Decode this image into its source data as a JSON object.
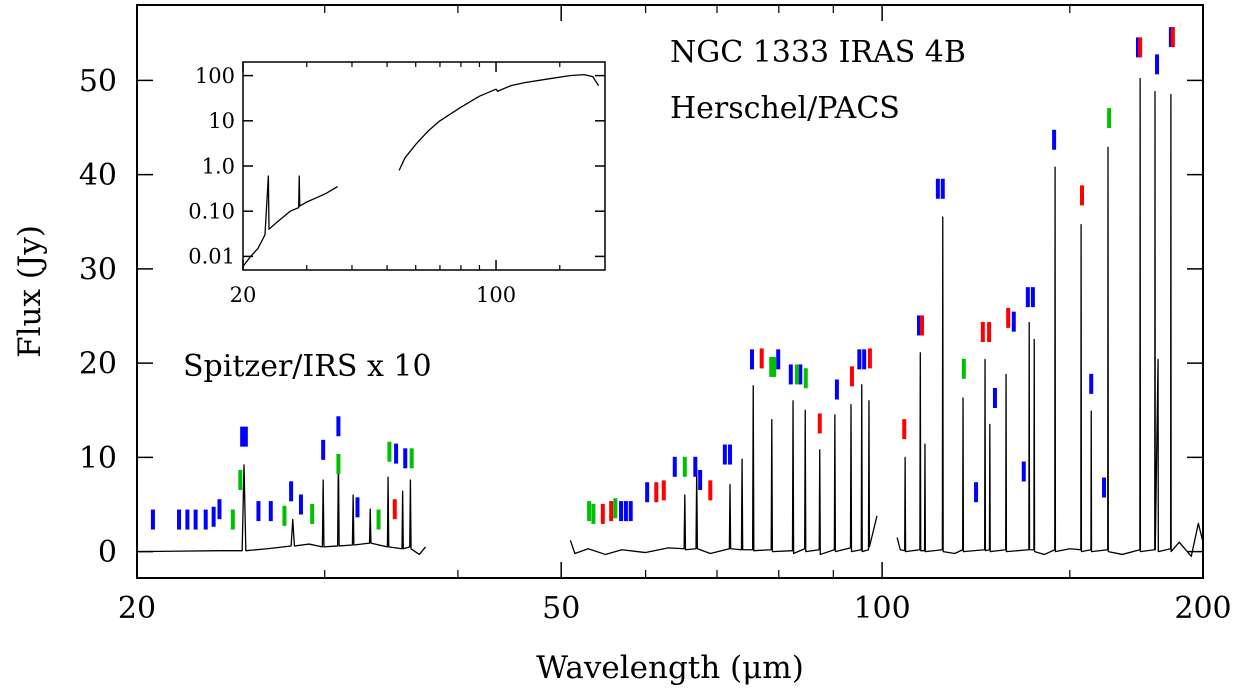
{
  "chart_data": [
    {
      "type": "line",
      "xlabel": "Wavelength (μm)",
      "ylabel": "Flux (Jy)",
      "annotations": [
        "NGC 1333 IRAS 4B",
        "Herschel/PACS",
        "Spitzer/IRS x 10"
      ],
      "xscale": "log",
      "xlim": [
        20,
        200
      ],
      "xticks": [
        20,
        50,
        100,
        200
      ],
      "xminor": [
        30,
        40,
        60,
        70,
        80,
        90,
        150
      ],
      "ylim": [
        -2.8,
        58
      ],
      "yticks": [
        0,
        10,
        20,
        30,
        40,
        50
      ],
      "grid": false,
      "color": "#000000",
      "segments": [
        {
          "x": [
            20,
            22,
            24,
            25.1,
            25.2,
            25.3,
            26.5,
            27.9,
            28.0,
            28.1,
            29,
            29.85,
            29.9,
            29.95,
            30.85,
            30.9,
            30.95,
            31.85,
            31.9,
            31.95,
            33.05,
            33.1,
            33.15,
            34.35,
            34.4,
            34.45,
            35.45,
            35.5,
            35.55,
            36.05,
            36.1,
            36.15,
            36.8,
            37.3
          ],
          "values": [
            0,
            0.05,
            0.1,
            0.1,
            9.2,
            0.1,
            0.3,
            0.6,
            3.4,
            0.6,
            0.8,
            0.5,
            7.6,
            0.5,
            0.6,
            10.3,
            0.6,
            0.7,
            6,
            0.7,
            0.9,
            4.5,
            0.9,
            0.5,
            7.9,
            0.5,
            0.3,
            6.4,
            0.3,
            0.5,
            7.6,
            0.3,
            -0.3,
            0.5
          ]
        },
        {
          "x": [
            51,
            51.5,
            53,
            55,
            57,
            60,
            63,
            65.2,
            65.3,
            65.4,
            66.9,
            67,
            67.1,
            69,
            71.9,
            72,
            72.1,
            73.8,
            73.9,
            74,
            75.6,
            75.7,
            75.8,
            78.7,
            78.8,
            78.9,
            82.4,
            82.5,
            82.6,
            84.6,
            84.7,
            84.8,
            87.3,
            87.4,
            87.5,
            90.2,
            90.3,
            90.4,
            93.4,
            93.5,
            93.6,
            95.6,
            95.7,
            95.8,
            97.1,
            97.2,
            97.3,
            98.9
          ],
          "values": [
            1.2,
            -0.2,
            0.3,
            -0.3,
            0.2,
            -0.1,
            0.4,
            0.3,
            6.0,
            0.2,
            0.3,
            8.7,
            0.3,
            -0.2,
            0.3,
            7.1,
            0.3,
            0.2,
            9.8,
            0.2,
            0.2,
            17.6,
            0.1,
            0.2,
            14,
            0,
            0.1,
            16,
            -0.2,
            0.3,
            15,
            0,
            0.2,
            10.8,
            -0.3,
            0.2,
            14.5,
            0,
            0.4,
            15.6,
            0,
            0.2,
            17.7,
            0,
            0.2,
            16,
            0.5,
            3.8
          ]
        },
        {
          "x": [
            103.3,
            104,
            105,
            105.1,
            105.2,
            108.5,
            108.6,
            108.7,
            109.6,
            109.7,
            109.8,
            113.9,
            114,
            114.1,
            117,
            119,
            119.1,
            119.2,
            124.8,
            124.9,
            125,
            126.1,
            126.2,
            126.3,
            130.6,
            130.7,
            130.8,
            137.3,
            137.4,
            137.5,
            138.8,
            138.9,
            139,
            142,
            145.2,
            145.3,
            145.4,
            150,
            153.6,
            153.7,
            153.8,
            157,
            157.1,
            157.2,
            162.8,
            162.9,
            163,
            168,
            174.5,
            174.6,
            174.7,
            180.2,
            180.3,
            180.4,
            181.5,
            181.6,
            186.5,
            186.6,
            186.7,
            190,
            195,
            198,
            200
          ],
          "values": [
            1.5,
            0.2,
            0.1,
            10,
            0,
            0.2,
            21.1,
            0.1,
            0.1,
            11.4,
            0,
            0.2,
            35.5,
            0,
            -0.2,
            0.2,
            16.3,
            0,
            0.2,
            20.4,
            0.1,
            0.2,
            13.5,
            0,
            0.2,
            18.8,
            0,
            0.2,
            24.3,
            0.2,
            0.2,
            22.5,
            0,
            -0.3,
            0.2,
            40.8,
            0,
            0.3,
            0.2,
            34.7,
            0,
            0.2,
            14.9,
            0,
            0.2,
            42.9,
            0,
            -0.3,
            0.2,
            50.2,
            0,
            0.2,
            48.8,
            0.2,
            20.4,
            0,
            0.3,
            48.5,
            0,
            1,
            -0.5,
            3,
            1
          ]
        }
      ],
      "markers": [
        {
          "color": "#0000ff",
          "x": [
            20.7,
            21.9,
            22.3,
            22.7,
            23.2,
            23.6,
            23.9,
            25.1,
            25.3,
            26.0,
            26.7,
            27.9,
            28.5,
            29.9,
            30.9,
            32.2,
            35.0,
            35.7,
            56.9,
            57.5,
            58.1,
            60.2,
            63.9,
            66.8,
            67.5,
            71.2,
            72.0,
            75.5,
            79.9,
            82.1,
            83.8,
            90.7,
            95.2,
            96.2,
            108.3,
            112.8,
            114.0,
            122.5,
            127.6,
            132.9,
            135.8,
            137.0,
            138.5,
            145.0,
            157.1,
            161.5,
            173.8,
            181.1,
            186.6
          ],
          "values": [
            3.4,
            3.4,
            3.4,
            3.4,
            3.4,
            3.7,
            4.5,
            12.2,
            12.2,
            4.3,
            4.3,
            6.4,
            5.0,
            10.8,
            13.3,
            4.7,
            10.4,
            9.9,
            4.3,
            4.3,
            4.3,
            6.3,
            9.0,
            9.0,
            7.6,
            10.3,
            10.3,
            20.4,
            20.4,
            18.8,
            18.8,
            17.2,
            20.4,
            20.4,
            24.0,
            38.5,
            38.5,
            6.3,
            16.3,
            24.4,
            8.5,
            27.0,
            27.0,
            43.7,
            17.8,
            6.8,
            53.5,
            51.7,
            54.6
          ]
        },
        {
          "color": "#ff0000",
          "x": [
            34.9,
            54.7,
            55.7,
            61.4,
            62.4,
            69.0,
            77.1,
            87.4,
            93.7,
            97.4,
            104.9,
            109.0,
            124.3,
            126.0,
            131.3,
            154.0,
            174.6,
            187.4
          ],
          "values": [
            4.5,
            4.0,
            4.3,
            6.3,
            6.5,
            6.5,
            20.5,
            13.6,
            18.6,
            20.5,
            13.0,
            24.0,
            23.3,
            23.3,
            24.8,
            37.8,
            53.5,
            54.6
          ]
        },
        {
          "color": "#00c000",
          "x": [
            24.6,
            25.0,
            27.5,
            29.2,
            30.9,
            33.7,
            34.5,
            36.2,
            53.1,
            53.6,
            56.2,
            65.3,
            78.7,
            79.2,
            83.2,
            84.8,
            119.3,
            163.3
          ],
          "values": [
            3.4,
            7.6,
            3.8,
            4.0,
            9.3,
            3.4,
            10.6,
            9.9,
            4.3,
            4.0,
            4.6,
            9.0,
            19.6,
            19.6,
            18.8,
            18.4,
            19.4,
            46.0
          ]
        }
      ]
    },
    {
      "type": "line",
      "xscale": "log",
      "yscale": "log",
      "xlim": [
        20,
        200
      ],
      "xticks": [
        20,
        100
      ],
      "xminor": [
        30,
        40,
        50,
        60,
        70,
        80,
        90,
        150
      ],
      "ylim": [
        0.005,
        200
      ],
      "yticks": [
        0.01,
        {
          "value": 0.1,
          "label": "0.10"
        },
        {
          "value": 1,
          "label": "1.0"
        },
        10,
        100
      ],
      "grid": false,
      "color": "#000000",
      "segments": [
        {
          "x": [
            20,
            21,
            22,
            23,
            23.5,
            23.6,
            25,
            27,
            28.5,
            28.6,
            28.7,
            30,
            32,
            34,
            36.5
          ],
          "values": [
            0.006,
            0.01,
            0.015,
            0.03,
            0.6,
            0.04,
            0.06,
            0.1,
            0.12,
            0.6,
            0.13,
            0.16,
            0.2,
            0.25,
            0.35
          ]
        },
        {
          "x": [
            54,
            56,
            60,
            65,
            70,
            80,
            90,
            100,
            101,
            110,
            120,
            140,
            160,
            175,
            185,
            192
          ],
          "values": [
            0.8,
            1.5,
            3,
            6,
            10,
            20,
            35,
            50,
            45,
            60,
            70,
            85,
            100,
            105,
            95,
            60
          ]
        }
      ]
    }
  ]
}
